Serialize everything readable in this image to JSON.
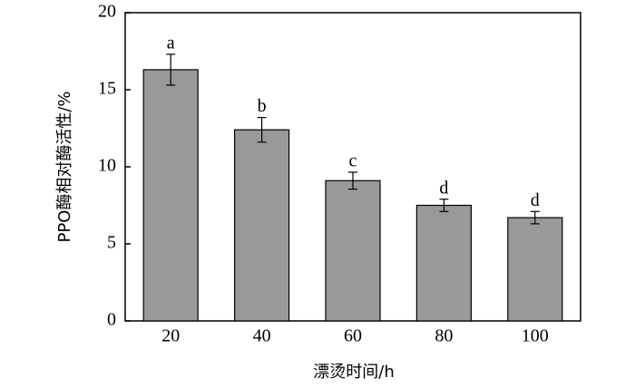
{
  "chart_data": {
    "type": "bar",
    "x_label": "漂烫时间/h",
    "y_label": "PPO酶相对酶活性/%",
    "categories": [
      "20",
      "40",
      "60",
      "80",
      "100"
    ],
    "values": [
      16.3,
      12.4,
      9.1,
      7.5,
      6.7
    ],
    "errors": [
      1.0,
      0.8,
      0.55,
      0.4,
      0.4
    ],
    "labels": [
      "a",
      "b",
      "c",
      "d",
      "d"
    ],
    "color": "#999999",
    "ylim": [
      0,
      20
    ],
    "yticks": [
      0,
      5,
      10,
      15,
      20
    ]
  }
}
